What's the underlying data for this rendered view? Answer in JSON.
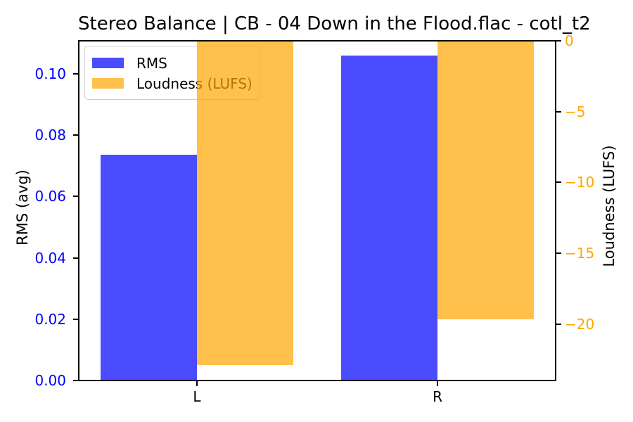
{
  "figure": {
    "background": "#ffffff"
  },
  "chart_data": {
    "type": "bar",
    "title": "Stereo Balance | CB - 04 Down in the Flood.flac - cotl_t2",
    "categories": [
      "L",
      "R"
    ],
    "series": [
      {
        "name": "RMS",
        "axis": "left",
        "color_rgb": [
          0,
          0,
          255
        ],
        "alpha": 0.7,
        "values": [
          0.0737,
          0.1059
        ]
      },
      {
        "name": "Loudness (LUFS)",
        "axis": "right",
        "color_rgb": [
          255,
          165,
          0
        ],
        "alpha": 0.7,
        "values": [
          -22.9,
          -19.7
        ]
      }
    ],
    "left_axis": {
      "label": "RMS (avg)",
      "color": "#0000ff",
      "tick_values": [
        0,
        0.02,
        0.04,
        0.06,
        0.08,
        0.1
      ],
      "tick_labels": [
        "0.00",
        "0.02",
        "0.04",
        "0.06",
        "0.08",
        "0.10"
      ],
      "lim": [
        0,
        0.1108
      ]
    },
    "right_axis": {
      "label": "Loudness (LUFS)",
      "color": "#ffa500",
      "tick_values": [
        0,
        -5,
        -10,
        -15,
        -20
      ],
      "tick_labels": [
        "0",
        "−5",
        "−10",
        "−15",
        "−20"
      ],
      "lim": [
        -24.0,
        0
      ]
    },
    "x_axis": {
      "tick_labels": [
        "L",
        "R"
      ],
      "positions": [
        0,
        1
      ],
      "lim": [
        -0.491,
        1.491
      ],
      "bar_width": 0.4
    },
    "legend": {
      "position": "upper-left",
      "entries": [
        "RMS",
        "Loudness (LUFS)"
      ]
    },
    "grid": false
  }
}
